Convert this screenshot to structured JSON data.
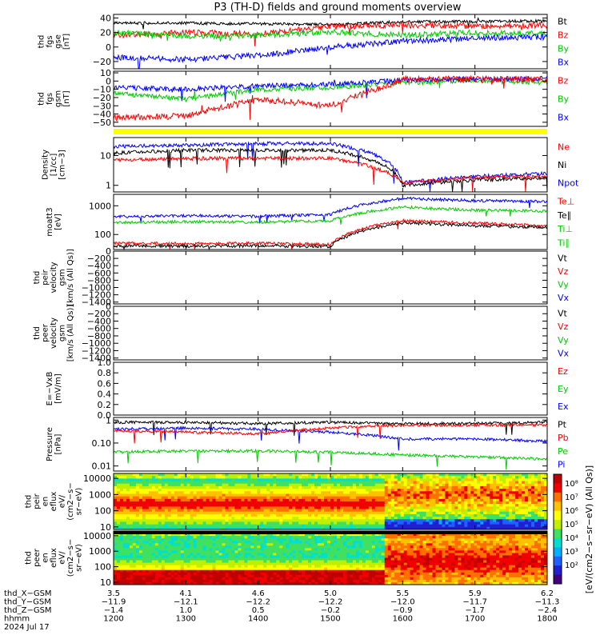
{
  "title": "P3 (TH-D) fields and ground moments overview",
  "panels": [
    {
      "id": "fgs-gse",
      "ylabel": [
        "thd",
        "fgs",
        "gse",
        "[nT]"
      ],
      "ticks": [
        {
          "v": 40,
          "t": "40"
        },
        {
          "v": 20,
          "t": "20"
        },
        {
          "v": 0,
          "t": "0"
        },
        {
          "v": -20,
          "t": "−20"
        }
      ],
      "ylim": [
        -30,
        45
      ],
      "legend": [
        {
          "t": "Bt",
          "c": "#000000"
        },
        {
          "t": "Bz",
          "c": "#ff0000"
        },
        {
          "t": "By",
          "c": "#00cc00"
        },
        {
          "t": "Bx",
          "c": "#0000ff"
        }
      ]
    },
    {
      "id": "fgs-gsm",
      "ylabel": [
        "thd",
        "fgs",
        "gsm",
        "[nT]"
      ],
      "ticks": [
        {
          "v": 10,
          "t": "10"
        },
        {
          "v": 0,
          "t": "0"
        },
        {
          "v": -10,
          "t": "−10"
        },
        {
          "v": -20,
          "t": "−20"
        },
        {
          "v": -30,
          "t": "−30"
        },
        {
          "v": -40,
          "t": "−40"
        },
        {
          "v": -50,
          "t": "−50"
        }
      ],
      "ylim": [
        -55,
        12
      ],
      "legend": [
        {
          "t": "Bz",
          "c": "#ff0000"
        },
        {
          "t": "By",
          "c": "#00cc00"
        },
        {
          "t": "Bx",
          "c": "#0000ff"
        }
      ]
    },
    {
      "id": "density",
      "ylabel": [
        "Density",
        "[1/cc]",
        "[cm−3]"
      ],
      "ticks": [
        {
          "v": 10,
          "t": "10"
        },
        {
          "v": 1,
          "t": "1"
        }
      ],
      "ylim": [
        0.6,
        40
      ],
      "log": true,
      "legend": [
        {
          "t": "Ne",
          "c": "#ff0000"
        },
        {
          "t": "Ni",
          "c": "#000000"
        },
        {
          "t": "Npot",
          "c": "#0000ff"
        }
      ]
    },
    {
      "id": "temperature",
      "ylabel": [
        "moatt3",
        "[eV]"
      ],
      "ticks": [
        {
          "v": 1000,
          "t": "1000"
        },
        {
          "v": 100,
          "t": "100"
        }
      ],
      "ylim": [
        30,
        2500
      ],
      "log": true,
      "legend": [
        {
          "t": "Te⊥",
          "c": "#ff0000"
        },
        {
          "t": "Te∥",
          "c": "#000000"
        },
        {
          "t": "Ti⊥",
          "c": "#00cc00"
        },
        {
          "t": "Ti∥",
          "c": "#00cc00"
        }
      ]
    },
    {
      "id": "peir-velocity",
      "ylabel": [
        "thd",
        "peir",
        "velocity",
        "gsm",
        "[km/s (All Qs)]"
      ],
      "ticks": [
        {
          "v": 0,
          "t": "0"
        },
        {
          "v": -200,
          "t": "−200"
        },
        {
          "v": -400,
          "t": "−400"
        },
        {
          "v": -600,
          "t": "−600"
        },
        {
          "v": -800,
          "t": "−800"
        },
        {
          "v": -1000,
          "t": "−1000"
        },
        {
          "v": -1200,
          "t": "−1200"
        },
        {
          "v": -1400,
          "t": "−1400"
        }
      ],
      "ylim": [
        -1450,
        0
      ],
      "legend": [
        {
          "t": "Vt",
          "c": "#000000"
        },
        {
          "t": "Vz",
          "c": "#ff0000"
        },
        {
          "t": "Vy",
          "c": "#00cc00"
        },
        {
          "t": "Vx",
          "c": "#0000ff"
        }
      ]
    },
    {
      "id": "peer-velocity",
      "ylabel": [
        "thd",
        "peer",
        "velocity",
        "gsm",
        "[km/s (All Qs)]"
      ],
      "ticks": [
        {
          "v": 0,
          "t": "0"
        },
        {
          "v": -200,
          "t": "−200"
        },
        {
          "v": -400,
          "t": "−400"
        },
        {
          "v": -600,
          "t": "−600"
        },
        {
          "v": -800,
          "t": "−800"
        },
        {
          "v": -1000,
          "t": "−1000"
        },
        {
          "v": -1200,
          "t": "−1200"
        },
        {
          "v": -1400,
          "t": "−1400"
        }
      ],
      "ylim": [
        -1450,
        0
      ],
      "legend": [
        {
          "t": "Vt",
          "c": "#000000"
        },
        {
          "t": "Vz",
          "c": "#ff0000"
        },
        {
          "t": "Vy",
          "c": "#00cc00"
        },
        {
          "t": "Vx",
          "c": "#0000ff"
        }
      ]
    },
    {
      "id": "efield",
      "ylabel": [
        "E=−VxB",
        "[mV/m]"
      ],
      "ticks": [
        {
          "v": 1.0,
          "t": "1.0"
        },
        {
          "v": 0.8,
          "t": "0.8"
        },
        {
          "v": 0.6,
          "t": "0.6"
        },
        {
          "v": 0.4,
          "t": "0.4"
        },
        {
          "v": 0.2,
          "t": "0.2"
        },
        {
          "v": 0.0,
          "t": "0.0"
        }
      ],
      "ylim": [
        0,
        1
      ],
      "legend": [
        {
          "t": "Ez",
          "c": "#ff0000"
        },
        {
          "t": "Ey",
          "c": "#00cc00"
        },
        {
          "t": "Ex",
          "c": "#0000ff"
        }
      ]
    },
    {
      "id": "pressure",
      "ylabel": [
        "Pressure",
        "[nPa]"
      ],
      "ticks": [
        {
          "v": 1,
          "t": "1"
        },
        {
          "v": 0.1,
          "t": "0.10"
        },
        {
          "v": 0.01,
          "t": "0.01"
        }
      ],
      "ylim": [
        0.006,
        1.3
      ],
      "log": true,
      "legend": [
        {
          "t": "Pt",
          "c": "#000000"
        },
        {
          "t": "Pb",
          "c": "#ff0000"
        },
        {
          "t": "Pe",
          "c": "#00cc00"
        },
        {
          "t": "Pi",
          "c": "#0000ff"
        }
      ]
    },
    {
      "id": "peir-eflux",
      "ylabel": [
        "thd",
        "peir",
        "en",
        "eflux",
        "eV/",
        "(cm2−s−",
        "sr−eV)"
      ],
      "ticks": [
        {
          "v": 10000,
          "t": "10000"
        },
        {
          "v": 1000,
          "t": "1000"
        },
        {
          "v": 100,
          "t": "100"
        },
        {
          "v": 10,
          "t": "10"
        }
      ],
      "ylim": [
        7,
        20000
      ],
      "log": true,
      "legend": []
    },
    {
      "id": "peer-eflux",
      "ylabel": [
        "thd",
        "peer",
        "en",
        "eflux",
        "eV/",
        "(cm2−s−",
        "sr−eV)"
      ],
      "ticks": [
        {
          "v": 10000,
          "t": "10000"
        },
        {
          "v": 1000,
          "t": "1000"
        },
        {
          "v": 100,
          "t": "100"
        },
        {
          "v": 10,
          "t": "10"
        }
      ],
      "ylim": [
        7,
        20000
      ],
      "log": true,
      "legend": []
    }
  ],
  "colorbar": {
    "ticks": [
      "10⁸",
      "10⁷",
      "10⁶",
      "10⁵",
      "10⁴",
      "10³",
      "10²"
    ],
    "label": "[eV/(cm2−s−sr−eV) (All Qs)]"
  },
  "footer": {
    "row_labels": [
      "thd_X−GSM",
      "thd_Y−GSM",
      "thd_Z−GSM",
      "hhmm",
      "2024 Jul 17"
    ],
    "columns": [
      {
        "x": "3.5",
        "y": "−11.9",
        "z": "−1.4",
        "t": "1200"
      },
      {
        "x": "4.1",
        "y": "−12.1",
        "z": "1.0",
        "t": "1300"
      },
      {
        "x": "4.6",
        "y": "−12.2",
        "z": "0.5",
        "t": "1400"
      },
      {
        "x": "5.0",
        "y": "−12.2",
        "z": "−0.2",
        "t": "1500"
      },
      {
        "x": "5.5",
        "y": "−12.0",
        "z": "−0.9",
        "t": "1600"
      },
      {
        "x": "5.9",
        "y": "−11.7",
        "z": "−1.7",
        "t": "1700"
      },
      {
        "x": "6.2",
        "y": "−11.3",
        "z": "−2.4",
        "t": "1800"
      }
    ]
  },
  "chart_data": {
    "type": "line",
    "title": "P3 (TH-D) fields and ground moments overview",
    "x_range": [
      "1200",
      "1800"
    ],
    "x_ticks": [
      "1200",
      "1300",
      "1400",
      "1500",
      "1600",
      "1700",
      "1800"
    ],
    "series": [
      {
        "name": "Bt",
        "panel": "fgs-gse",
        "x": [
          "1200",
          "1300",
          "1400",
          "1500",
          "1600",
          "1700",
          "1800"
        ],
        "values": [
          33,
          33,
          32,
          31,
          35,
          35,
          36
        ]
      },
      {
        "name": "Bz",
        "panel": "fgs-gse",
        "x": [
          "1200",
          "1300",
          "1400",
          "1500",
          "1600",
          "1700",
          "1800"
        ],
        "values": [
          16,
          20,
          18,
          28,
          30,
          29,
          30
        ]
      },
      {
        "name": "By",
        "panel": "fgs-gse",
        "x": [
          "1200",
          "1300",
          "1400",
          "1500",
          "1600",
          "1700",
          "1800"
        ],
        "values": [
          20,
          15,
          16,
          21,
          16,
          20,
          18
        ]
      },
      {
        "name": "Bx",
        "panel": "fgs-gse",
        "x": [
          "1200",
          "1300",
          "1400",
          "1500",
          "1600",
          "1700",
          "1800"
        ],
        "values": [
          -14,
          -17,
          -12,
          0,
          8,
          12,
          14
        ]
      },
      {
        "name": "Bz",
        "panel": "fgs-gsm",
        "x": [
          "1200",
          "1300",
          "1400",
          "1500",
          "1600",
          "1700",
          "1800"
        ],
        "values": [
          -45,
          -42,
          -22,
          -30,
          2,
          2,
          2
        ]
      },
      {
        "name": "By",
        "panel": "fgs-gsm",
        "x": [
          "1200",
          "1300",
          "1400",
          "1500",
          "1600",
          "1700",
          "1800"
        ],
        "values": [
          -15,
          -22,
          -10,
          -8,
          -2,
          1,
          -2
        ]
      },
      {
        "name": "Bx",
        "panel": "fgs-gsm",
        "x": [
          "1200",
          "1300",
          "1400",
          "1500",
          "1600",
          "1700",
          "1800"
        ],
        "values": [
          -8,
          -10,
          -6,
          -4,
          1,
          2,
          3
        ]
      },
      {
        "name": "Ne",
        "panel": "density",
        "x": [
          "1200",
          "1300",
          "1400",
          "1500",
          "1600",
          "1700",
          "1800"
        ],
        "values": [
          7,
          8,
          8,
          8,
          1.2,
          1.8,
          2
        ]
      },
      {
        "name": "Ni",
        "panel": "density",
        "x": [
          "1200",
          "1300",
          "1400",
          "1500",
          "1600",
          "1700",
          "1800"
        ],
        "values": [
          12,
          15,
          15,
          15,
          1.0,
          1.5,
          1.8
        ]
      },
      {
        "name": "Npot",
        "panel": "density",
        "x": [
          "1200",
          "1300",
          "1400",
          "1500",
          "1600",
          "1700",
          "1800"
        ],
        "values": [
          20,
          22,
          25,
          25,
          1.2,
          2,
          2.5
        ]
      },
      {
        "name": "Ti⊥",
        "panel": "temperature",
        "x": [
          "1200",
          "1300",
          "1400",
          "1500",
          "1600",
          "1700",
          "1800"
        ],
        "values": [
          420,
          450,
          430,
          500,
          1800,
          1500,
          1400
        ]
      },
      {
        "name": "Ti∥",
        "panel": "temperature",
        "x": [
          "1200",
          "1300",
          "1400",
          "1500",
          "1600",
          "1700",
          "1800"
        ],
        "values": [
          260,
          280,
          270,
          300,
          900,
          700,
          650
        ]
      },
      {
        "name": "Te⊥",
        "panel": "temperature",
        "x": [
          "1200",
          "1300",
          "1400",
          "1500",
          "1600",
          "1700",
          "1800"
        ],
        "values": [
          50,
          48,
          50,
          45,
          300,
          250,
          200
        ]
      },
      {
        "name": "Te∥",
        "panel": "temperature",
        "x": [
          "1200",
          "1300",
          "1400",
          "1500",
          "1600",
          "1700",
          "1800"
        ],
        "values": [
          40,
          40,
          40,
          38,
          250,
          200,
          180
        ]
      },
      {
        "name": "Pt",
        "panel": "pressure",
        "x": [
          "1200",
          "1300",
          "1400",
          "1500",
          "1600",
          "1700",
          "1800"
        ],
        "values": [
          0.8,
          0.8,
          0.7,
          0.8,
          0.7,
          0.7,
          0.8
        ]
      },
      {
        "name": "Pb",
        "panel": "pressure",
        "x": [
          "1200",
          "1300",
          "1400",
          "1500",
          "1600",
          "1700",
          "1800"
        ],
        "values": [
          0.35,
          0.3,
          0.25,
          0.45,
          0.6,
          0.6,
          0.6
        ]
      },
      {
        "name": "Pe",
        "panel": "pressure",
        "x": [
          "1200",
          "1300",
          "1400",
          "1500",
          "1600",
          "1700",
          "1800"
        ],
        "values": [
          0.04,
          0.045,
          0.045,
          0.04,
          0.03,
          0.025,
          0.02
        ]
      },
      {
        "name": "Pi",
        "panel": "pressure",
        "x": [
          "1200",
          "1300",
          "1400",
          "1500",
          "1600",
          "1700",
          "1800"
        ],
        "values": [
          0.4,
          0.45,
          0.4,
          0.3,
          0.15,
          0.15,
          0.12
        ]
      }
    ]
  }
}
